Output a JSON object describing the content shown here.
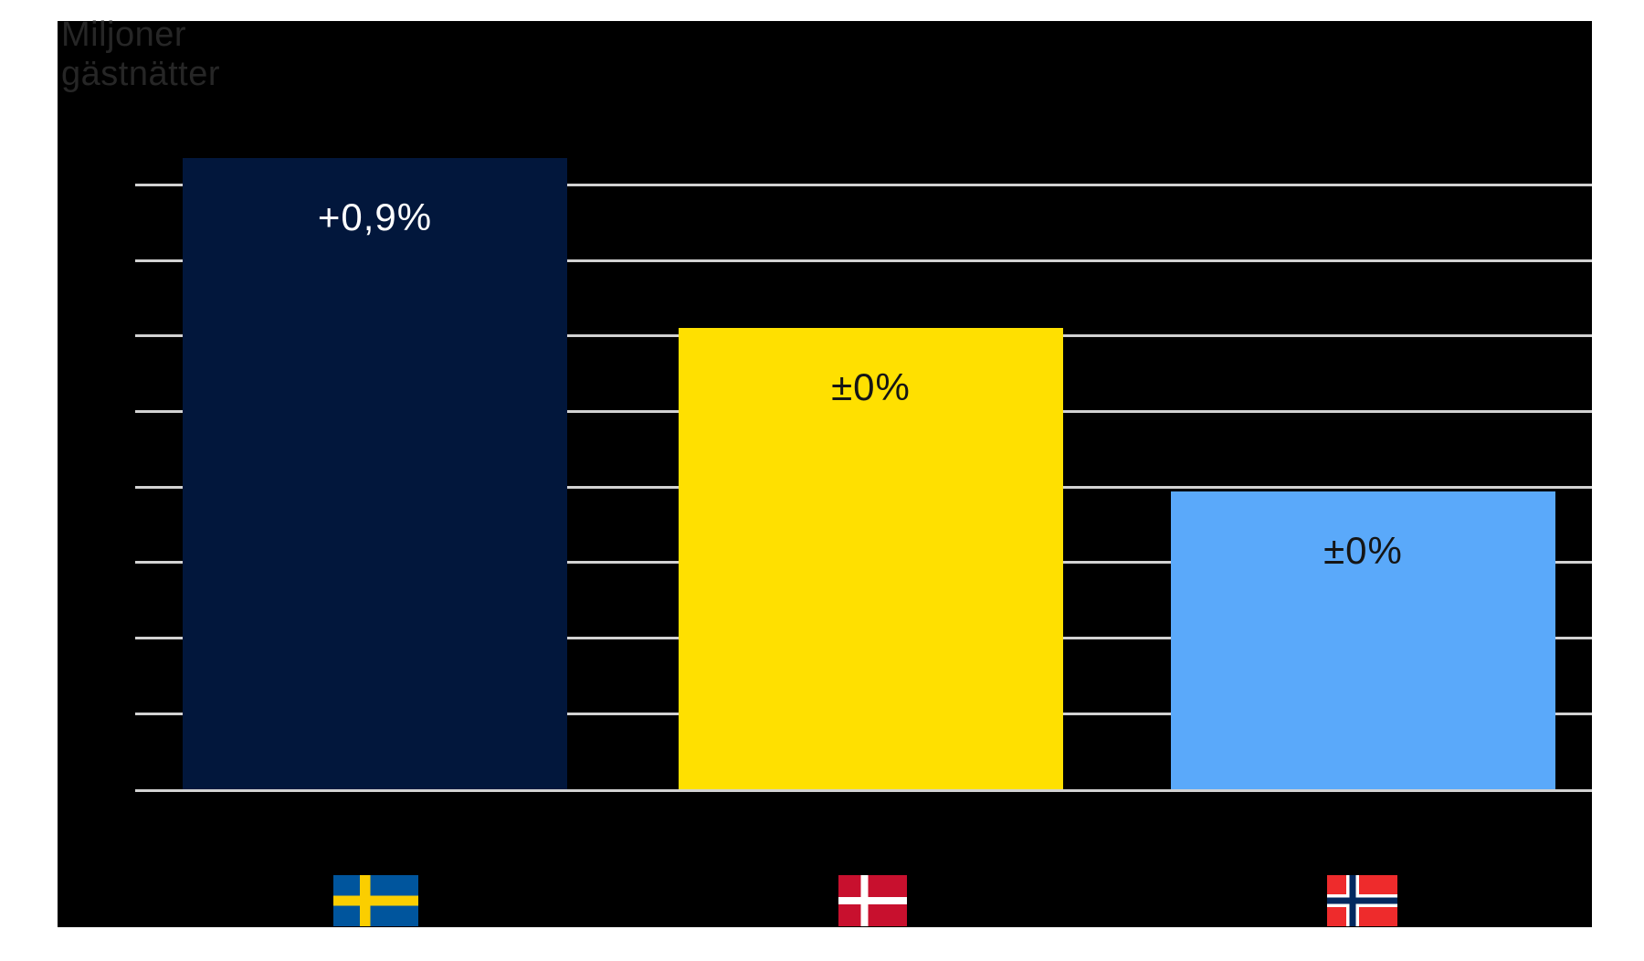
{
  "chart_data": {
    "type": "bar",
    "title": "Miljoner gästnätter",
    "title_lines": "Miljoner\ngästnätter",
    "ylabel": "Miljoner gästnätter",
    "xlabel": "",
    "categories": [
      "Sverige",
      "Danmark",
      "Norge"
    ],
    "category_icons": [
      "sweden-flag",
      "denmark-flag",
      "norway-flag"
    ],
    "bar_labels": [
      "+0,9%",
      "±0%",
      "±0%"
    ],
    "series": [
      {
        "name": "Gästnätter (miljoner)",
        "values_gridline_units": [
          8.35,
          6.1,
          3.95
        ],
        "note": "Y axis has no numeric tick labels; values estimated in units of the equal gridline spacing, baseline = 0"
      }
    ],
    "grid": true,
    "gridline_count": 8,
    "legend_position": "none",
    "colors": {
      "bar_sweden": "#02173c",
      "bar_denmark": "#ffe000",
      "bar_norway": "#5aa9fa",
      "gridline": "#d2d2d2",
      "baseline": "#d2d2d2",
      "panel_background": "#000000",
      "page_background": "#ffffff",
      "title_text": "#262626",
      "label_on_dark_bar": "#ffffff",
      "label_on_light_bar": "#151515"
    }
  },
  "flags": {
    "sweden": {
      "field": "#00559d",
      "cross": "#fbce00"
    },
    "denmark": {
      "field": "#c8102e",
      "cross": "#ffffff"
    },
    "norway": {
      "field": "#ee2b2c",
      "cross": "#03285f",
      "fimbriation": "#ffffff"
    }
  }
}
